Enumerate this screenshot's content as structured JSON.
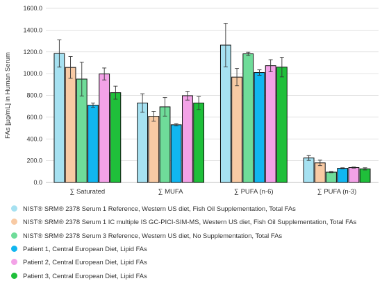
{
  "chart_data": {
    "type": "bar",
    "ylabel": "FAs [µg/mL] in Human Serum",
    "xlabel": "",
    "ylim": [
      0,
      1600
    ],
    "yticks": [
      "0.0",
      "200.0",
      "400.0",
      "600.0",
      "800.0",
      "1000.0",
      "1200.0",
      "1400.0",
      "1600.0"
    ],
    "ytick_values": [
      0,
      200,
      400,
      600,
      800,
      1000,
      1200,
      1400,
      1600
    ],
    "grid": true,
    "legend_position": "bottom",
    "categories": [
      "∑ Saturated",
      "∑ MUFA",
      "∑ PUFA (n-6)",
      "∑ PUFA (n-3)"
    ],
    "series": [
      {
        "name": "NIST® SRM® 2378 Serum 1 Reference, Western US diet, Fish Oil Supplementation, Total FAs",
        "color": "#a6e1f1",
        "values": [
          1185,
          730,
          1262,
          225
        ],
        "errors": [
          125,
          85,
          200,
          22
        ]
      },
      {
        "name": "NIST® SRM® 2378 Serum 1 IC multiple IS GC-PICI-SIM-MS, Western US diet, Fish Oil Supplementation, Total FAs",
        "color": "#f8caa4",
        "values": [
          1057,
          608,
          968,
          180
        ],
        "errors": [
          100,
          45,
          80,
          25
        ]
      },
      {
        "name": "NIST® SRM® 2378 Serum 3 Reference, Western US diet, No Supplementation, Total FAs",
        "color": "#6fdc99",
        "values": [
          950,
          695,
          1182,
          95
        ],
        "errors": [
          155,
          85,
          15,
          5
        ]
      },
      {
        "name": "Patient 1, Central European Diet, Lipid FAs",
        "color": "#11b6f0",
        "values": [
          710,
          530,
          1010,
          130
        ],
        "errors": [
          20,
          10,
          25,
          5
        ]
      },
      {
        "name": "Patient 2, Central European Diet, Lipid FAs",
        "color": "#f3a2e7",
        "values": [
          997,
          797,
          1073,
          137
        ],
        "errors": [
          55,
          40,
          55,
          5
        ]
      },
      {
        "name": "Patient 3, Central European Diet, Lipid FAs",
        "color": "#1fbf3a",
        "values": [
          825,
          730,
          1060,
          125
        ],
        "errors": [
          60,
          60,
          90,
          10
        ]
      }
    ]
  }
}
